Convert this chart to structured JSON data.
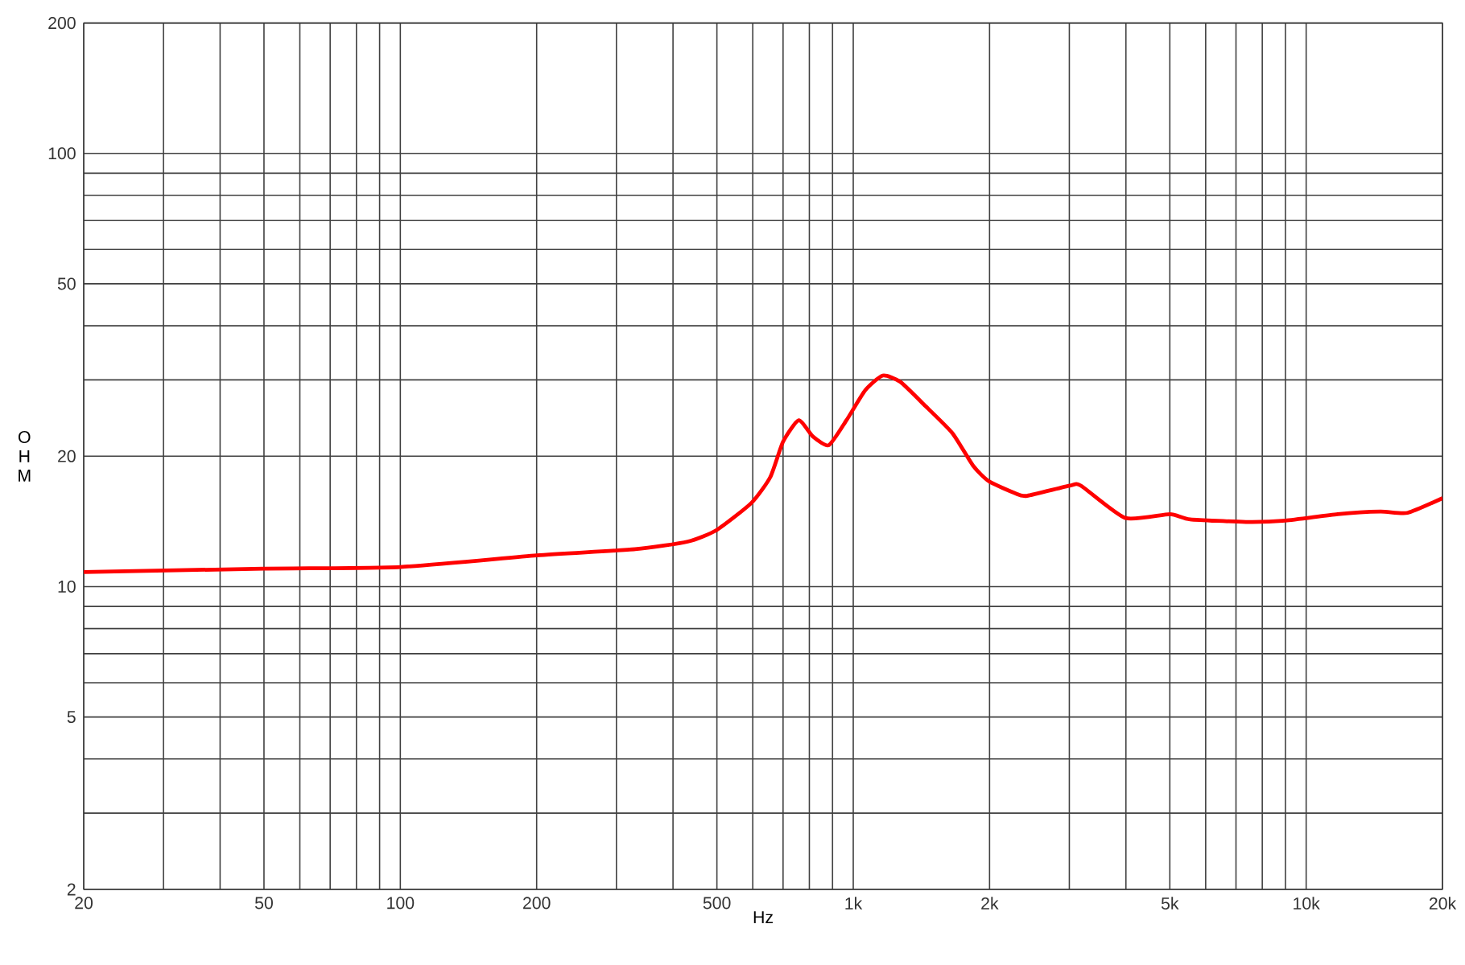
{
  "chart_data": {
    "type": "line",
    "xlabel": "Hz",
    "ylabel": "O H M",
    "log": "xy",
    "grid": true,
    "xlim": [
      20,
      20000
    ],
    "ylim": [
      2,
      200
    ],
    "xticks": [
      20,
      {
        "value": 30,
        "label": null
      },
      {
        "value": 40,
        "label": null
      },
      50,
      {
        "value": 60,
        "label": null
      },
      {
        "value": 70,
        "label": null
      },
      {
        "value": 80,
        "label": null
      },
      {
        "value": 90,
        "label": null
      },
      100,
      200,
      {
        "value": 300,
        "label": null
      },
      {
        "value": 400,
        "label": null
      },
      500,
      {
        "value": 600,
        "label": null
      },
      {
        "value": 700,
        "label": null
      },
      {
        "value": 800,
        "label": null
      },
      {
        "value": 900,
        "label": null
      },
      {
        "value": 1000,
        "label": "1k"
      },
      {
        "value": 2000,
        "label": "2k"
      },
      {
        "value": 3000,
        "label": null
      },
      {
        "value": 4000,
        "label": null
      },
      {
        "value": 5000,
        "label": "5k"
      },
      {
        "value": 6000,
        "label": null
      },
      {
        "value": 7000,
        "label": null
      },
      {
        "value": 8000,
        "label": null
      },
      {
        "value": 9000,
        "label": null
      },
      {
        "value": 10000,
        "label": "10k"
      },
      {
        "value": 20000,
        "label": "20k"
      }
    ],
    "yticks": [
      2,
      {
        "value": 3,
        "label": null
      },
      {
        "value": 4,
        "label": null
      },
      5,
      {
        "value": 6,
        "label": null
      },
      {
        "value": 7,
        "label": null
      },
      {
        "value": 8,
        "label": null
      },
      {
        "value": 9,
        "label": null
      },
      10,
      20,
      {
        "value": 30,
        "label": null
      },
      {
        "value": 40,
        "label": null
      },
      50,
      {
        "value": 60,
        "label": null
      },
      {
        "value": 70,
        "label": null
      },
      {
        "value": 80,
        "label": null
      },
      {
        "value": 90,
        "label": null
      },
      100,
      200
    ],
    "series": [
      {
        "color": "#ff0000",
        "x": [
          20,
          50,
          100,
          200,
          330,
          431,
          499,
          596,
          656,
          700,
          758,
          815,
          883,
          966,
          1063,
          1162,
          1270,
          1444,
          1656,
          1840,
          1994,
          2286,
          2420,
          3007,
          3183,
          3990,
          5000,
          5546,
          7360,
          9000,
          11740,
          14590,
          16740,
          20000
        ],
        "values": [
          10.8,
          11.0,
          11.1,
          11.8,
          12.2,
          12.7,
          13.5,
          15.6,
          17.9,
          21.6,
          24.2,
          22.2,
          21.2,
          24.2,
          28.4,
          30.7,
          29.7,
          26.1,
          22.6,
          19.0,
          17.5,
          16.4,
          16.2,
          17.1,
          17.1,
          14.4,
          14.7,
          14.3,
          14.1,
          14.2,
          14.7,
          14.9,
          14.8,
          16.0
        ]
      }
    ]
  }
}
